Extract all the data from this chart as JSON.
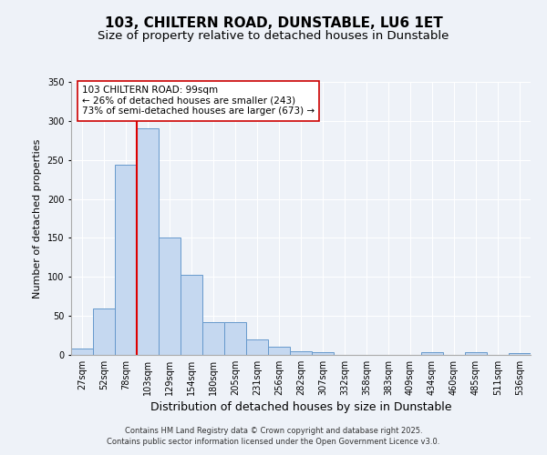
{
  "title": "103, CHILTERN ROAD, DUNSTABLE, LU6 1ET",
  "subtitle": "Size of property relative to detached houses in Dunstable",
  "xlabel": "Distribution of detached houses by size in Dunstable",
  "ylabel": "Number of detached properties",
  "bar_labels": [
    "27sqm",
    "52sqm",
    "78sqm",
    "103sqm",
    "129sqm",
    "154sqm",
    "180sqm",
    "205sqm",
    "231sqm",
    "256sqm",
    "282sqm",
    "307sqm",
    "332sqm",
    "358sqm",
    "383sqm",
    "409sqm",
    "434sqm",
    "460sqm",
    "485sqm",
    "511sqm",
    "536sqm"
  ],
  "bar_values": [
    8,
    59,
    244,
    290,
    150,
    103,
    42,
    42,
    20,
    11,
    5,
    3,
    0,
    0,
    0,
    0,
    4,
    0,
    3,
    0,
    2
  ],
  "bar_color": "#c5d8f0",
  "bar_edge_color": "#6699cc",
  "vline_x": 3,
  "vline_color": "#dd0000",
  "ylim": [
    0,
    350
  ],
  "yticks": [
    0,
    50,
    100,
    150,
    200,
    250,
    300,
    350
  ],
  "annotation_text": "103 CHILTERN ROAD: 99sqm\n← 26% of detached houses are smaller (243)\n73% of semi-detached houses are larger (673) →",
  "annotation_box_facecolor": "#ffffff",
  "annotation_box_edgecolor": "#cc0000",
  "footnote1": "Contains HM Land Registry data © Crown copyright and database right 2025.",
  "footnote2": "Contains public sector information licensed under the Open Government Licence v3.0.",
  "bg_color": "#eef2f8",
  "plot_bg_color": "#eef2f8",
  "grid_color": "#ffffff",
  "title_fontsize": 11,
  "subtitle_fontsize": 9.5,
  "xlabel_fontsize": 9,
  "ylabel_fontsize": 8,
  "tick_fontsize": 7,
  "annot_fontsize": 7.5,
  "footnote_fontsize": 6
}
